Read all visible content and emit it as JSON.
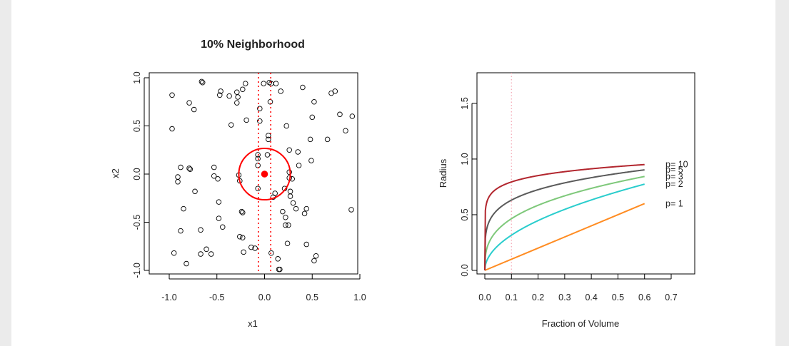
{
  "chart_data": [
    {
      "type": "scatter",
      "title": "10% Neighborhood",
      "xlabel": "x1",
      "ylabel": "x2",
      "xlim": [
        -1.0,
        1.0
      ],
      "ylim": [
        -1.0,
        1.0
      ],
      "xticks": [
        "-1.0",
        "-0.5",
        "0.0",
        "0.5",
        "1.0"
      ],
      "yticks": [
        "-1.0",
        "-0.5",
        "0.0",
        "0.5",
        "1.0"
      ],
      "target_point": {
        "x": 0.0,
        "y": 0.0,
        "color": "#ff0000"
      },
      "circle": {
        "cx": 0.0,
        "cy": 0.0,
        "r": 0.27,
        "color": "#ff0000"
      },
      "vertical_lines": {
        "x": [
          -0.065,
          0.065
        ],
        "style": "dotted",
        "color": "#ff0000"
      },
      "points": [
        [
          -0.97,
          0.82
        ],
        [
          -0.97,
          0.47
        ],
        [
          -0.88,
          0.07
        ],
        [
          -0.91,
          -0.03
        ],
        [
          -0.91,
          -0.08
        ],
        [
          -0.85,
          -0.36
        ],
        [
          -0.88,
          -0.59
        ],
        [
          -0.95,
          -0.82
        ],
        [
          -0.82,
          -0.93
        ],
        [
          -0.79,
          0.74
        ],
        [
          -0.74,
          0.67
        ],
        [
          -0.79,
          0.06
        ],
        [
          -0.78,
          0.05
        ],
        [
          -0.73,
          -0.18
        ],
        [
          -0.67,
          -0.58
        ],
        [
          -0.67,
          -0.83
        ],
        [
          -0.61,
          -0.78
        ],
        [
          -0.66,
          0.96
        ],
        [
          -0.65,
          0.95
        ],
        [
          -0.56,
          -0.83
        ],
        [
          -0.53,
          0.07
        ],
        [
          -0.53,
          -0.02
        ],
        [
          -0.49,
          -0.05
        ],
        [
          -0.48,
          -0.29
        ],
        [
          -0.48,
          -0.46
        ],
        [
          -0.46,
          0.86
        ],
        [
          -0.47,
          0.82
        ],
        [
          -0.44,
          -0.55
        ],
        [
          -0.37,
          0.81
        ],
        [
          -0.35,
          0.51
        ],
        [
          -0.29,
          0.85
        ],
        [
          -0.28,
          0.8
        ],
        [
          -0.29,
          0.74
        ],
        [
          -0.27,
          -0.01
        ],
        [
          -0.26,
          -0.07
        ],
        [
          -0.26,
          -0.65
        ],
        [
          -0.24,
          -0.39
        ],
        [
          -0.23,
          -0.4
        ],
        [
          -0.23,
          -0.66
        ],
        [
          -0.22,
          -0.81
        ],
        [
          -0.23,
          0.88
        ],
        [
          -0.2,
          0.94
        ],
        [
          -0.19,
          0.56
        ],
        [
          -0.14,
          -0.76
        ],
        [
          -0.1,
          -0.77
        ],
        [
          -0.07,
          0.2
        ],
        [
          -0.07,
          0.16
        ],
        [
          -0.07,
          0.09
        ],
        [
          -0.07,
          -0.15
        ],
        [
          -0.05,
          0.68
        ],
        [
          -0.05,
          0.55
        ],
        [
          -0.01,
          0.94
        ],
        [
          0.03,
          0.2
        ],
        [
          0.05,
          0.95
        ],
        [
          0.07,
          0.94
        ],
        [
          0.04,
          0.4
        ],
        [
          0.04,
          0.36
        ],
        [
          0.06,
          0.75
        ],
        [
          0.07,
          -0.82
        ],
        [
          0.09,
          -0.24
        ],
        [
          0.11,
          -0.2
        ],
        [
          0.12,
          0.94
        ],
        [
          0.14,
          -0.88
        ],
        [
          0.15,
          -0.99
        ],
        [
          0.16,
          -0.99
        ],
        [
          0.17,
          0.86
        ],
        [
          0.19,
          -0.39
        ],
        [
          0.21,
          -0.15
        ],
        [
          0.22,
          -0.45
        ],
        [
          0.22,
          -0.53
        ],
        [
          0.23,
          0.5
        ],
        [
          0.24,
          -0.72
        ],
        [
          0.26,
          0.02
        ],
        [
          0.25,
          -0.53
        ],
        [
          0.26,
          -0.04
        ],
        [
          0.26,
          0.25
        ],
        [
          0.27,
          -0.18
        ],
        [
          0.27,
          -0.23
        ],
        [
          0.29,
          -0.05
        ],
        [
          0.3,
          -0.3
        ],
        [
          0.33,
          -0.36
        ],
        [
          0.35,
          0.23
        ],
        [
          0.36,
          0.09
        ],
        [
          0.4,
          0.9
        ],
        [
          0.42,
          -0.41
        ],
        [
          0.44,
          -0.36
        ],
        [
          0.44,
          -0.73
        ],
        [
          0.48,
          0.36
        ],
        [
          0.49,
          0.14
        ],
        [
          0.5,
          0.59
        ],
        [
          0.52,
          0.75
        ],
        [
          0.52,
          -0.9
        ],
        [
          0.54,
          -0.85
        ],
        [
          0.66,
          0.36
        ],
        [
          0.7,
          0.84
        ],
        [
          0.74,
          0.86
        ],
        [
          0.79,
          0.62
        ],
        [
          0.85,
          0.45
        ],
        [
          0.92,
          0.6
        ],
        [
          0.91,
          -0.37
        ]
      ]
    },
    {
      "type": "line",
      "title": "",
      "xlabel": "Fraction of Volume",
      "ylabel": "Radius",
      "xlim": [
        0.0,
        0.7
      ],
      "ylim": [
        0.0,
        1.73
      ],
      "xticks": [
        "0.0",
        "0.1",
        "0.2",
        "0.3",
        "0.4",
        "0.5",
        "0.6",
        "0.7"
      ],
      "yticks": [
        "0.0",
        "0.5",
        "1.0",
        "1.5"
      ],
      "reference_line": {
        "x": 0.1,
        "style": "dotted",
        "color": "#f4a6b4"
      },
      "x_max": 0.6,
      "series": [
        {
          "name": "p= 1",
          "p": 1,
          "color": "#ff8c22"
        },
        {
          "name": "p= 2",
          "p": 2,
          "color": "#2acdcd"
        },
        {
          "name": "p= 3",
          "p": 3,
          "color": "#7ec87a"
        },
        {
          "name": "p= 5",
          "p": 5,
          "color": "#5a5a5a"
        },
        {
          "name": "p= 10",
          "p": 10,
          "color": "#b2262e"
        }
      ]
    }
  ]
}
